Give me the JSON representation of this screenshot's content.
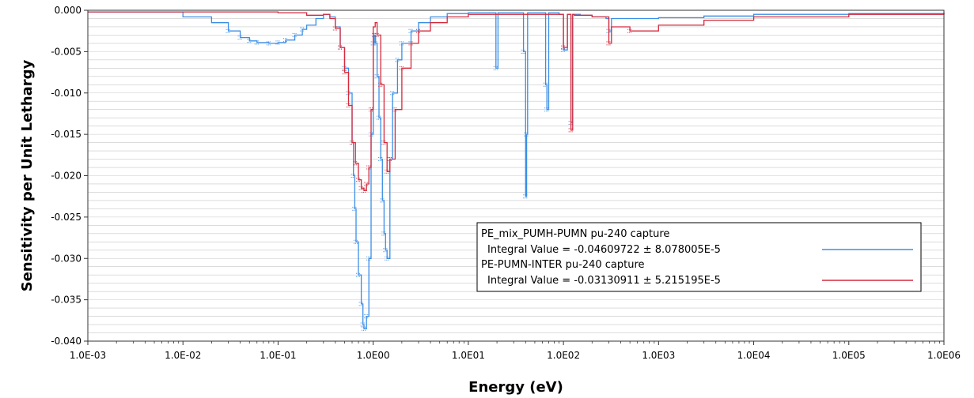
{
  "chart_data": {
    "type": "line",
    "xlabel": "Energy (eV)",
    "ylabel": "Sensitivity per Unit Lethargy",
    "x_scale": "log",
    "xlim": [
      0.001,
      1000000
    ],
    "ylim": [
      -0.04,
      0.0
    ],
    "x_ticks": [
      "1.0E-03",
      "1.0E-02",
      "1.0E-01",
      "1.0E00",
      "1.0E01",
      "1.0E02",
      "1.0E03",
      "1.0E04",
      "1.0E05",
      "1.0E06"
    ],
    "y_ticks": [
      "0.000",
      "-0.005",
      "-0.010",
      "-0.015",
      "-0.020",
      "-0.025",
      "-0.030",
      "-0.035",
      "-0.040"
    ],
    "grid": true,
    "legend_position": "lower-right",
    "series": [
      {
        "name": "PE_mix_PUMH-PUMN pu-240 capture",
        "integral": "Integral Value = -0.04609722 ± 8.078005E-5",
        "color": "#3a8ee6",
        "x": [
          0.001,
          0.01,
          0.02,
          0.03,
          0.04,
          0.05,
          0.06,
          0.08,
          0.1,
          0.12,
          0.15,
          0.18,
          0.2,
          0.25,
          0.3,
          0.35,
          0.4,
          0.45,
          0.5,
          0.55,
          0.6,
          0.62,
          0.64,
          0.66,
          0.7,
          0.75,
          0.78,
          0.8,
          0.85,
          0.9,
          0.95,
          1.0,
          1.03,
          1.06,
          1.1,
          1.15,
          1.2,
          1.25,
          1.3,
          1.35,
          1.4,
          1.5,
          1.6,
          1.8,
          2.0,
          2.5,
          3.0,
          4.0,
          6.0,
          10.0,
          18.0,
          19.5,
          20.5,
          22.0,
          30.0,
          38.0,
          40.0,
          41.0,
          42.0,
          45.0,
          60.0,
          65.0,
          67.0,
          70.0,
          80.0,
          90.0,
          100.0,
          110.0,
          117.0,
          120.0,
          125.0,
          150.0,
          200.0,
          280.0,
          300.0,
          320.0,
          500.0,
          1000.0,
          3000.0,
          10000.0,
          100000.0,
          1000000.0
        ],
        "y": [
          -0.0002,
          -0.0008,
          -0.0015,
          -0.0025,
          -0.0033,
          -0.0037,
          -0.0039,
          -0.004,
          -0.0039,
          -0.0036,
          -0.003,
          -0.0023,
          -0.0018,
          -0.001,
          -0.0005,
          -0.0008,
          -0.002,
          -0.0045,
          -0.007,
          -0.01,
          -0.016,
          -0.02,
          -0.024,
          -0.028,
          -0.032,
          -0.0355,
          -0.038,
          -0.0385,
          -0.037,
          -0.03,
          -0.015,
          -0.004,
          -0.003,
          -0.004,
          -0.008,
          -0.013,
          -0.018,
          -0.023,
          -0.027,
          -0.029,
          -0.03,
          -0.018,
          -0.01,
          -0.006,
          -0.004,
          -0.0025,
          -0.0015,
          -0.0008,
          -0.0004,
          -0.0003,
          -0.0003,
          -0.007,
          -0.0003,
          -0.0003,
          -0.0003,
          -0.005,
          -0.0225,
          -0.015,
          -0.0003,
          -0.0003,
          -0.0003,
          -0.009,
          -0.012,
          -0.0003,
          -0.0003,
          -0.0005,
          -0.0048,
          -0.0005,
          -0.0005,
          -0.0136,
          -0.0005,
          -0.0006,
          -0.0008,
          -0.001,
          -0.0025,
          -0.001,
          -0.001,
          -0.0009,
          -0.0007,
          -0.0005,
          -0.0004,
          -0.0003
        ]
      },
      {
        "name": "PE-PUMN-INTER pu-240 capture",
        "integral": "Integral Value = -0.03130911 ± 5.215195E-5",
        "color": "#d42a3c",
        "x": [
          0.001,
          0.1,
          0.2,
          0.3,
          0.35,
          0.4,
          0.45,
          0.5,
          0.55,
          0.6,
          0.65,
          0.7,
          0.75,
          0.8,
          0.85,
          0.9,
          0.95,
          1.0,
          1.05,
          1.1,
          1.2,
          1.3,
          1.4,
          1.5,
          1.7,
          2.0,
          2.5,
          3.0,
          4.0,
          6.0,
          10.0,
          100.0,
          110.0,
          120.0,
          125.0,
          130.0,
          200.0,
          300.0,
          320.0,
          500.0,
          1000.0,
          3000.0,
          10000.0,
          100000.0,
          1000000.0
        ],
        "y": [
          -0.0002,
          -0.0003,
          -0.0006,
          -0.0005,
          -0.001,
          -0.0022,
          -0.0045,
          -0.0075,
          -0.0115,
          -0.016,
          -0.0185,
          -0.0205,
          -0.0215,
          -0.0218,
          -0.021,
          -0.019,
          -0.012,
          -0.002,
          -0.0015,
          -0.003,
          -0.009,
          -0.016,
          -0.0195,
          -0.018,
          -0.012,
          -0.007,
          -0.004,
          -0.0025,
          -0.0015,
          -0.0008,
          -0.0005,
          -0.0045,
          -0.0005,
          -0.0145,
          -0.0005,
          -0.0006,
          -0.0008,
          -0.004,
          -0.002,
          -0.0025,
          -0.0018,
          -0.0012,
          -0.0008,
          -0.0005,
          -0.0003
        ]
      }
    ]
  }
}
